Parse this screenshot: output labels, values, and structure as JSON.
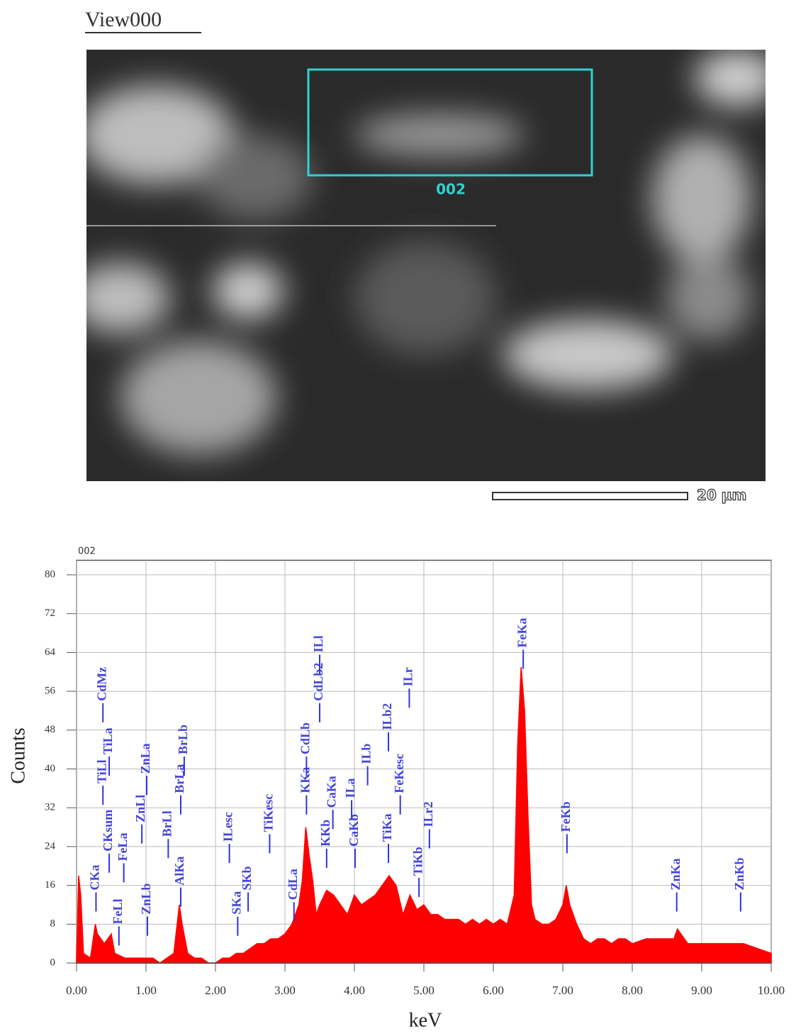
{
  "image": {
    "title": "View000",
    "region_label": "002",
    "scale_label": "20 µm"
  },
  "chart_data": {
    "type": "area",
    "title": "002",
    "x_label": "keV",
    "y_label": "Counts",
    "color": "#ff0000",
    "grid": true,
    "xlim": [
      0,
      10
    ],
    "ylim": [
      0,
      83
    ],
    "xticks": [
      {
        "value": 0,
        "label": "0.00"
      },
      {
        "value": 1,
        "label": "1.00"
      },
      {
        "value": 2,
        "label": "2.00"
      },
      {
        "value": 3,
        "label": "3.00"
      },
      {
        "value": 4,
        "label": "4.00"
      },
      {
        "value": 5,
        "label": "5.00"
      },
      {
        "value": 6,
        "label": "6.00"
      },
      {
        "value": 7,
        "label": "7.00"
      },
      {
        "value": 8,
        "label": "8.00"
      },
      {
        "value": 9,
        "label": "9.00"
      },
      {
        "value": 10,
        "label": "10.00"
      }
    ],
    "yticks": [
      0,
      8,
      16,
      24,
      32,
      40,
      48,
      56,
      64,
      72,
      80
    ],
    "x": [
      0,
      0.03,
      0.06,
      0.1,
      0.2,
      0.27,
      0.3,
      0.4,
      0.5,
      0.55,
      0.7,
      0.8,
      0.9,
      1.0,
      1.1,
      1.2,
      1.3,
      1.4,
      1.48,
      1.52,
      1.6,
      1.7,
      1.8,
      1.9,
      2.0,
      2.1,
      2.2,
      2.3,
      2.4,
      2.5,
      2.6,
      2.7,
      2.8,
      2.9,
      3.0,
      3.1,
      3.2,
      3.25,
      3.3,
      3.35,
      3.4,
      3.45,
      3.5,
      3.6,
      3.7,
      3.8,
      3.9,
      4.0,
      4.1,
      4.2,
      4.3,
      4.4,
      4.5,
      4.6,
      4.7,
      4.8,
      4.9,
      5.0,
      5.1,
      5.2,
      5.3,
      5.4,
      5.5,
      5.6,
      5.7,
      5.8,
      5.9,
      6.0,
      6.1,
      6.2,
      6.3,
      6.35,
      6.4,
      6.45,
      6.5,
      6.55,
      6.6,
      6.7,
      6.8,
      6.9,
      7.0,
      7.05,
      7.1,
      7.2,
      7.3,
      7.4,
      7.5,
      7.6,
      7.7,
      7.8,
      7.9,
      8.0,
      8.2,
      8.4,
      8.6,
      8.65,
      8.8,
      9.0,
      9.2,
      9.4,
      9.6,
      9.8,
      10.0
    ],
    "values": [
      0,
      18,
      14,
      2,
      1,
      8,
      6,
      4,
      6,
      2,
      1,
      1,
      1,
      1,
      1,
      0,
      1,
      2,
      12,
      8,
      2,
      1,
      1,
      0,
      0,
      1,
      1,
      2,
      2,
      3,
      4,
      4,
      5,
      5,
      6,
      8,
      12,
      17,
      28,
      22,
      17,
      10,
      12,
      15,
      14,
      12,
      10,
      14,
      12,
      13,
      14,
      16,
      18,
      16,
      10,
      14,
      11,
      12,
      10,
      10,
      9,
      9,
      9,
      8,
      9,
      8,
      9,
      8,
      9,
      8,
      14,
      45,
      61,
      52,
      30,
      12,
      9,
      8,
      8,
      9,
      12,
      16,
      12,
      8,
      5,
      4,
      5,
      5,
      4,
      5,
      5,
      4,
      5,
      5,
      5,
      7,
      4,
      4,
      4,
      4,
      4,
      3,
      2
    ],
    "annotations": [
      {
        "text": "CKa",
        "x": 0.28,
        "y": 15
      },
      {
        "text": "FeLl",
        "x": 0.61,
        "y": 8
      },
      {
        "text": "FeLa",
        "x": 0.68,
        "y": 21
      },
      {
        "text": "CKsum",
        "x": 0.47,
        "y": 23
      },
      {
        "text": "TiLl",
        "x": 0.38,
        "y": 37
      },
      {
        "text": "TiLa",
        "x": 0.47,
        "y": 43
      },
      {
        "text": "CdMz",
        "x": 0.38,
        "y": 54
      },
      {
        "text": "ZnLl",
        "x": 0.94,
        "y": 29
      },
      {
        "text": "ZnLa",
        "x": 1.01,
        "y": 39
      },
      {
        "text": "ZnLb",
        "x": 1.02,
        "y": 10
      },
      {
        "text": "BrLl",
        "x": 1.32,
        "y": 26
      },
      {
        "text": "BrLa",
        "x": 1.5,
        "y": 35
      },
      {
        "text": "BrLb",
        "x": 1.55,
        "y": 43
      },
      {
        "text": "AlKa",
        "x": 1.5,
        "y": 16
      },
      {
        "text": "SKa",
        "x": 2.32,
        "y": 10
      },
      {
        "text": "SKb",
        "x": 2.47,
        "y": 15
      },
      {
        "text": "ILesc",
        "x": 2.2,
        "y": 25
      },
      {
        "text": "TiKesc",
        "x": 2.78,
        "y": 27
      },
      {
        "text": "CdLa",
        "x": 3.13,
        "y": 13
      },
      {
        "text": "KKa",
        "x": 3.31,
        "y": 35
      },
      {
        "text": "CdLb",
        "x": 3.31,
        "y": 43
      },
      {
        "text": "CdLb2",
        "x": 3.5,
        "y": 54
      },
      {
        "text": "ILl",
        "x": 3.5,
        "y": 64
      },
      {
        "text": "KKb",
        "x": 3.6,
        "y": 24
      },
      {
        "text": "CaKa",
        "x": 3.69,
        "y": 32
      },
      {
        "text": "ILa",
        "x": 3.96,
        "y": 34
      },
      {
        "text": "CaKb",
        "x": 4.01,
        "y": 24
      },
      {
        "text": "ILb",
        "x": 4.19,
        "y": 41
      },
      {
        "text": "ILb2",
        "x": 4.49,
        "y": 48
      },
      {
        "text": "TiKa",
        "x": 4.49,
        "y": 25
      },
      {
        "text": "FeKesc",
        "x": 4.66,
        "y": 35
      },
      {
        "text": "ILr",
        "x": 4.79,
        "y": 57
      },
      {
        "text": "TiKb",
        "x": 4.93,
        "y": 18
      },
      {
        "text": "ILr2",
        "x": 5.08,
        "y": 28
      },
      {
        "text": "FeKa",
        "x": 6.43,
        "y": 65
      },
      {
        "text": "FeKb",
        "x": 7.06,
        "y": 27
      },
      {
        "text": "ZnKa",
        "x": 8.64,
        "y": 15
      },
      {
        "text": "ZnKb",
        "x": 9.56,
        "y": 15
      }
    ]
  }
}
